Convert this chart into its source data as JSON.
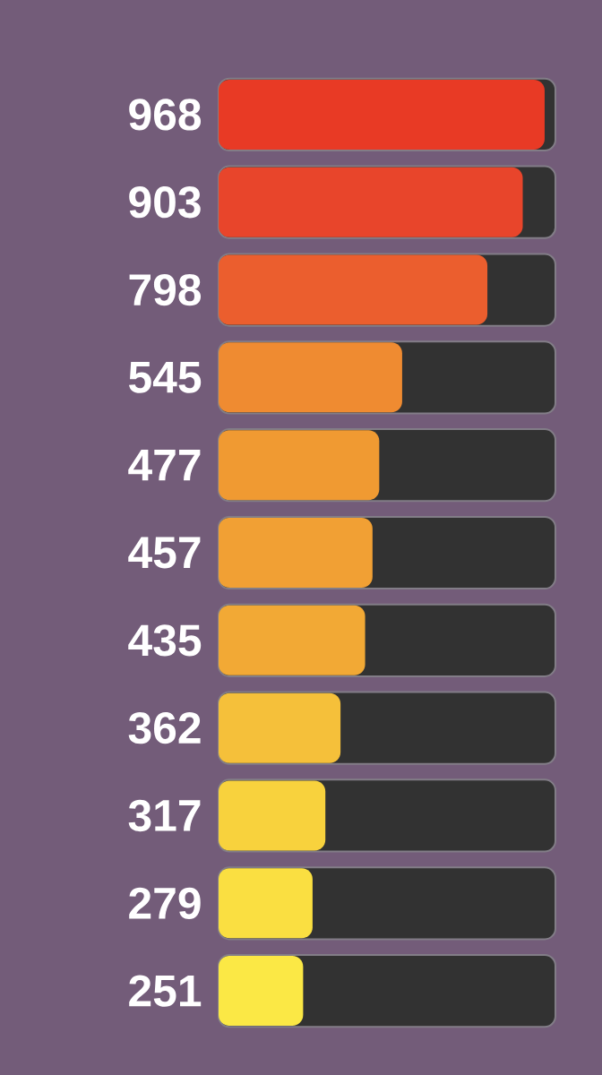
{
  "chart_data": {
    "type": "bar",
    "orientation": "horizontal",
    "categories": [
      null,
      null,
      null,
      null,
      null,
      null,
      null,
      null,
      null,
      null,
      null
    ],
    "values": [
      968,
      903,
      798,
      545,
      477,
      457,
      435,
      362,
      317,
      279,
      251
    ],
    "colors": [
      "#e83a25",
      "#e8452b",
      "#eb5e2e",
      "#ef8b31",
      "#f09a32",
      "#f1a034",
      "#f2a935",
      "#f5c03a",
      "#f8d23d",
      "#fadf41",
      "#fbe845"
    ],
    "xlim": [
      0,
      1000
    ],
    "data_labels": true
  }
}
